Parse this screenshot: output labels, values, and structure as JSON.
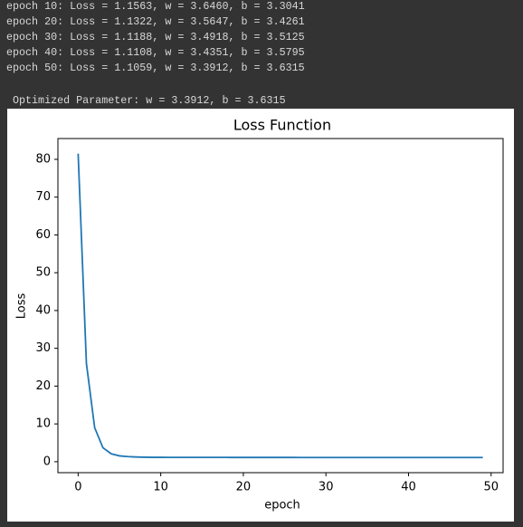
{
  "console": {
    "lines": [
      "epoch 10: Loss = 1.1563, w = 3.6460, b = 3.3041",
      "epoch 20: Loss = 1.1322, w = 3.5647, b = 3.4261",
      "epoch 30: Loss = 1.1188, w = 3.4918, b = 3.5125",
      "epoch 40: Loss = 1.1108, w = 3.4351, b = 3.5795",
      "epoch 50: Loss = 1.1059, w = 3.3912, b = 3.6315"
    ],
    "result": "Optimized Parameter: w = 3.3912, b = 3.6315"
  },
  "chart_data": {
    "type": "line",
    "title": "Loss Function",
    "x_label": "epoch",
    "y_label": "Loss",
    "x": [
      0,
      1,
      2,
      3,
      4,
      5,
      6,
      7,
      8,
      9,
      10,
      11,
      12,
      13,
      14,
      15,
      16,
      17,
      18,
      19,
      20,
      21,
      22,
      23,
      24,
      25,
      26,
      27,
      28,
      29,
      30,
      31,
      32,
      33,
      34,
      35,
      36,
      37,
      38,
      39,
      40,
      41,
      42,
      43,
      44,
      45,
      46,
      47,
      48,
      49
    ],
    "series": [
      {
        "color": "#1f77b4",
        "values": [
          81.5,
          26,
          9,
          3.7,
          2.1,
          1.55,
          1.35,
          1.25,
          1.19,
          1.1563,
          1.153,
          1.15,
          1.148,
          1.145,
          1.143,
          1.141,
          1.139,
          1.137,
          1.134,
          1.1322,
          1.131,
          1.129,
          1.128,
          1.126,
          1.125,
          1.124,
          1.123,
          1.121,
          1.12,
          1.1188,
          1.118,
          1.117,
          1.116,
          1.116,
          1.115,
          1.114,
          1.113,
          1.112,
          1.111,
          1.1108,
          1.11,
          1.11,
          1.109,
          1.109,
          1.108,
          1.108,
          1.107,
          1.107,
          1.106,
          1.1059
        ]
      }
    ],
    "xlim": [
      -2.45,
      51.45
    ],
    "xticks": [
      0,
      10,
      20,
      30,
      40,
      50
    ],
    "ylim": [
      -2.9,
      85.5
    ],
    "yticks": [
      0,
      10,
      20,
      30,
      40,
      50,
      60,
      70,
      80
    ]
  }
}
